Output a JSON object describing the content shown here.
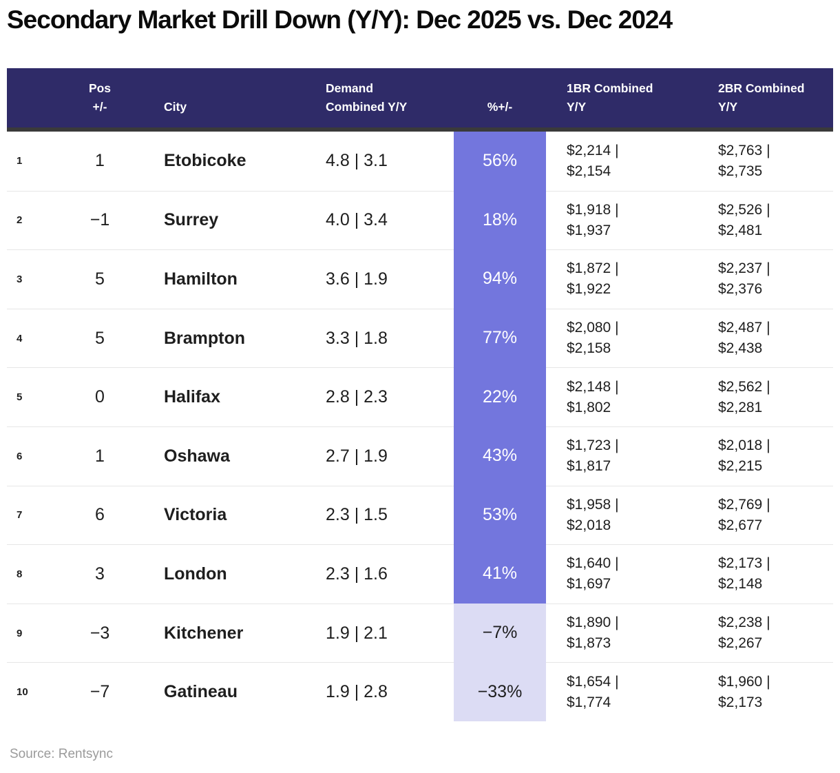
{
  "page": {
    "title": "Secondary Market Drill Down (Y/Y): Dec 2025 vs. Dec 2024",
    "source": "Source: Rentsync"
  },
  "colors": {
    "header_bg": "#2f2b68",
    "header_divider": "#3a3a3a",
    "positive_pct_cell": "#7376dd",
    "negative_pct_cell": "#dcdcf4",
    "row_separator": "#e6e6e6",
    "source_text": "#9b9b9b"
  },
  "table": {
    "headers": {
      "pos": [
        "Pos",
        "+/-"
      ],
      "city": "City",
      "demand": [
        "Demand",
        "Combined Y/Y"
      ],
      "pct": "%+/-",
      "one_br": [
        "1BR Combined",
        "Y/Y"
      ],
      "two_br": [
        "2BR Combined",
        "Y/Y"
      ]
    },
    "rows": [
      {
        "rank": "1",
        "pos": "1",
        "city": "Etobicoke",
        "demand": "4.8 | 3.1",
        "pct": "56%",
        "pct_positive": true,
        "one_br": [
          "$2,214 |",
          "$2,154"
        ],
        "two_br": [
          "$2,763 |",
          "$2,735"
        ]
      },
      {
        "rank": "2",
        "pos": "−1",
        "city": "Surrey",
        "demand": "4.0 | 3.4",
        "pct": "18%",
        "pct_positive": true,
        "one_br": [
          "$1,918 |",
          "$1,937"
        ],
        "two_br": [
          "$2,526 |",
          "$2,481"
        ]
      },
      {
        "rank": "3",
        "pos": "5",
        "city": "Hamilton",
        "demand": "3.6 | 1.9",
        "pct": "94%",
        "pct_positive": true,
        "one_br": [
          "$1,872 |",
          "$1,922"
        ],
        "two_br": [
          "$2,237 |",
          "$2,376"
        ]
      },
      {
        "rank": "4",
        "pos": "5",
        "city": "Brampton",
        "demand": "3.3 | 1.8",
        "pct": "77%",
        "pct_positive": true,
        "one_br": [
          "$2,080 |",
          "$2,158"
        ],
        "two_br": [
          "$2,487 |",
          "$2,438"
        ]
      },
      {
        "rank": "5",
        "pos": "0",
        "city": "Halifax",
        "demand": "2.8 | 2.3",
        "pct": "22%",
        "pct_positive": true,
        "one_br": [
          "$2,148 |",
          "$1,802"
        ],
        "two_br": [
          "$2,562 |",
          "$2,281"
        ]
      },
      {
        "rank": "6",
        "pos": "1",
        "city": "Oshawa",
        "demand": "2.7 | 1.9",
        "pct": "43%",
        "pct_positive": true,
        "one_br": [
          "$1,723 |",
          "$1,817"
        ],
        "two_br": [
          "$2,018 |",
          "$2,215"
        ]
      },
      {
        "rank": "7",
        "pos": "6",
        "city": "Victoria",
        "demand": "2.3 | 1.5",
        "pct": "53%",
        "pct_positive": true,
        "one_br": [
          "$1,958 |",
          "$2,018"
        ],
        "two_br": [
          "$2,769 |",
          "$2,677"
        ]
      },
      {
        "rank": "8",
        "pos": "3",
        "city": "London",
        "demand": "2.3 | 1.6",
        "pct": "41%",
        "pct_positive": true,
        "one_br": [
          "$1,640 |",
          "$1,697"
        ],
        "two_br": [
          "$2,173 |",
          "$2,148"
        ]
      },
      {
        "rank": "9",
        "pos": "−3",
        "city": "Kitchener",
        "demand": "1.9 | 2.1",
        "pct": "−7%",
        "pct_positive": false,
        "one_br": [
          "$1,890 |",
          "$1,873"
        ],
        "two_br": [
          "$2,238 |",
          "$2,267"
        ]
      },
      {
        "rank": "10",
        "pos": "−7",
        "city": "Gatineau",
        "demand": "1.9 | 2.8",
        "pct": "−33%",
        "pct_positive": false,
        "one_br": [
          "$1,654 |",
          "$1,774"
        ],
        "two_br": [
          "$1,960 |",
          "$2,173"
        ]
      }
    ]
  },
  "chart_data": {
    "type": "table",
    "title": "Secondary Market Drill Down (Y/Y): Dec 2025 vs. Dec 2024",
    "columns": [
      "Rank",
      "Pos +/-",
      "City",
      "Demand Combined Y/Y",
      "%+/-",
      "1BR Combined Y/Y",
      "2BR Combined Y/Y"
    ],
    "rows": [
      [
        "1",
        "1",
        "Etobicoke",
        "4.8 | 3.1",
        "56%",
        "$2,214 | $2,154",
        "$2,763 | $2,735"
      ],
      [
        "2",
        "-1",
        "Surrey",
        "4.0 | 3.4",
        "18%",
        "$1,918 | $1,937",
        "$2,526 | $2,481"
      ],
      [
        "3",
        "5",
        "Hamilton",
        "3.6 | 1.9",
        "94%",
        "$1,872 | $1,922",
        "$2,237 | $2,376"
      ],
      [
        "4",
        "5",
        "Brampton",
        "3.3 | 1.8",
        "77%",
        "$2,080 | $2,158",
        "$2,487 | $2,438"
      ],
      [
        "5",
        "0",
        "Halifax",
        "2.8 | 2.3",
        "22%",
        "$2,148 | $1,802",
        "$2,562 | $2,281"
      ],
      [
        "6",
        "1",
        "Oshawa",
        "2.7 | 1.9",
        "43%",
        "$1,723 | $1,817",
        "$2,018 | $2,215"
      ],
      [
        "7",
        "6",
        "Victoria",
        "2.3 | 1.5",
        "53%",
        "$1,958 | $2,018",
        "$2,769 | $2,677"
      ],
      [
        "8",
        "3",
        "London",
        "2.3 | 1.6",
        "41%",
        "$1,640 | $1,697",
        "$2,173 | $2,148"
      ],
      [
        "9",
        "-3",
        "Kitchener",
        "1.9 | 2.1",
        "-7%",
        "$1,890 | $1,873",
        "$2,238 | $2,267"
      ],
      [
        "10",
        "-7",
        "Gatineau",
        "1.9 | 2.8",
        "-33%",
        "$1,654 | $1,774",
        "$1,960 | $2,173"
      ]
    ],
    "source": "Source: Rentsync",
    "layout_hints": {
      "pct_column_highlight": "purple band; positive values on #7376dd with white text, negative on #dcdcf4 with dark text"
    }
  }
}
